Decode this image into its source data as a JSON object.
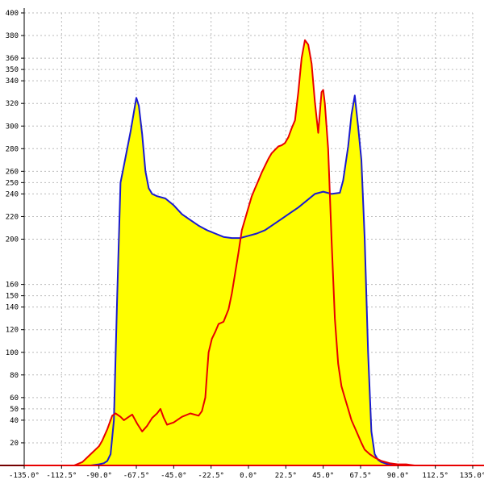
{
  "chart_data": {
    "type": "area",
    "title": "",
    "xlabel": "",
    "ylabel": "",
    "xlim": [
      -135,
      135
    ],
    "ylim": [
      0,
      400
    ],
    "grid": true,
    "x_ticks": [
      -135,
      -112.5,
      -90,
      -67.5,
      -45,
      -22.5,
      0,
      22.5,
      45,
      67.5,
      90,
      112.5,
      135
    ],
    "x_tick_labels": [
      "-135.0°",
      "-112.5°",
      "-90.0°",
      "-67.5°",
      "-45.0°",
      "-22.5°",
      "0.0°",
      "22.5°",
      "45.0°",
      "67.5°",
      "90.0°",
      "112.5°",
      "135.0°"
    ],
    "y_ticks": [
      20,
      40,
      50,
      60,
      80,
      100,
      120,
      140,
      150,
      160,
      200,
      220,
      240,
      250,
      260,
      280,
      300,
      320,
      340,
      350,
      360,
      380,
      400
    ],
    "y_tick_labels": [
      "20",
      "40",
      "50",
      "60",
      "80",
      "100",
      "120",
      "140",
      "150",
      "160",
      "200",
      "220",
      "240",
      "250",
      "260",
      "280",
      "300",
      "320",
      "340",
      "350",
      "360",
      "380",
      "400"
    ],
    "colors": {
      "fill": "#ffff00",
      "blue_series": "#1a1ad0",
      "red_series": "#e80000",
      "grid": "#bbbbbb"
    },
    "series": [
      {
        "color": "#1a1ad0",
        "x": [
          -100,
          -95,
          -90,
          -87,
          -85,
          -83,
          -81,
          -79,
          -77,
          -75,
          -73,
          -71,
          -69,
          -67.5,
          -66,
          -64,
          -62,
          -60,
          -58,
          -55,
          -50,
          -45,
          -40,
          -35,
          -30,
          -25,
          -20,
          -15,
          -10,
          -5,
          0,
          5,
          10,
          15,
          20,
          25,
          30,
          35,
          40,
          45,
          50,
          55,
          57,
          60,
          62,
          64,
          66,
          68,
          70,
          72,
          74,
          76,
          78,
          80,
          82,
          84,
          86,
          88,
          90,
          95,
          100,
          105
        ],
        "y": [
          0,
          0,
          1,
          2,
          4,
          10,
          40,
          150,
          250,
          265,
          280,
          295,
          312,
          325,
          318,
          293,
          260,
          245,
          240,
          238,
          236,
          230,
          222,
          217,
          212,
          208,
          205,
          202,
          201,
          201,
          203,
          205,
          208,
          213,
          218,
          223,
          228,
          234,
          240,
          242,
          240,
          241,
          252,
          282,
          310,
          327,
          300,
          270,
          200,
          100,
          30,
          10,
          5,
          3,
          2,
          1,
          1,
          0,
          0,
          0,
          0,
          0
        ]
      },
      {
        "color": "#e80000",
        "x": [
          -105,
          -100,
          -95,
          -90,
          -88,
          -85,
          -82,
          -80,
          -77,
          -75,
          -72,
          -70,
          -67,
          -64,
          -61,
          -58,
          -55,
          -53,
          -51,
          -49,
          -47,
          -45,
          -40,
          -35,
          -30,
          -28,
          -26,
          -25,
          -24,
          -22,
          -20,
          -18,
          -15,
          -12,
          -10,
          -8,
          -6,
          -4,
          -2,
          0,
          2,
          4,
          6,
          8,
          10,
          12,
          14,
          16,
          18,
          20,
          22,
          24,
          26,
          28,
          30,
          32,
          34,
          36,
          38,
          40,
          42,
          44,
          45,
          46,
          48,
          50,
          52,
          54,
          56,
          58,
          60,
          62,
          65,
          68,
          70,
          73,
          76,
          80,
          85,
          90,
          95,
          100,
          105
        ],
        "y": [
          0,
          3,
          10,
          17,
          22,
          32,
          44,
          46,
          43,
          40,
          43,
          45,
          37,
          30,
          35,
          42,
          46,
          50,
          42,
          36,
          37,
          38,
          43,
          46,
          44,
          48,
          60,
          80,
          100,
          112,
          118,
          125,
          127,
          138,
          152,
          170,
          188,
          208,
          218,
          228,
          238,
          245,
          252,
          259,
          265,
          271,
          276,
          279,
          282,
          283,
          285,
          290,
          298,
          305,
          330,
          360,
          376,
          372,
          355,
          321,
          294,
          330,
          332,
          320,
          280,
          200,
          130,
          90,
          70,
          60,
          50,
          40,
          30,
          20,
          14,
          10,
          7,
          4,
          2,
          1,
          1,
          0,
          0
        ]
      }
    ]
  }
}
